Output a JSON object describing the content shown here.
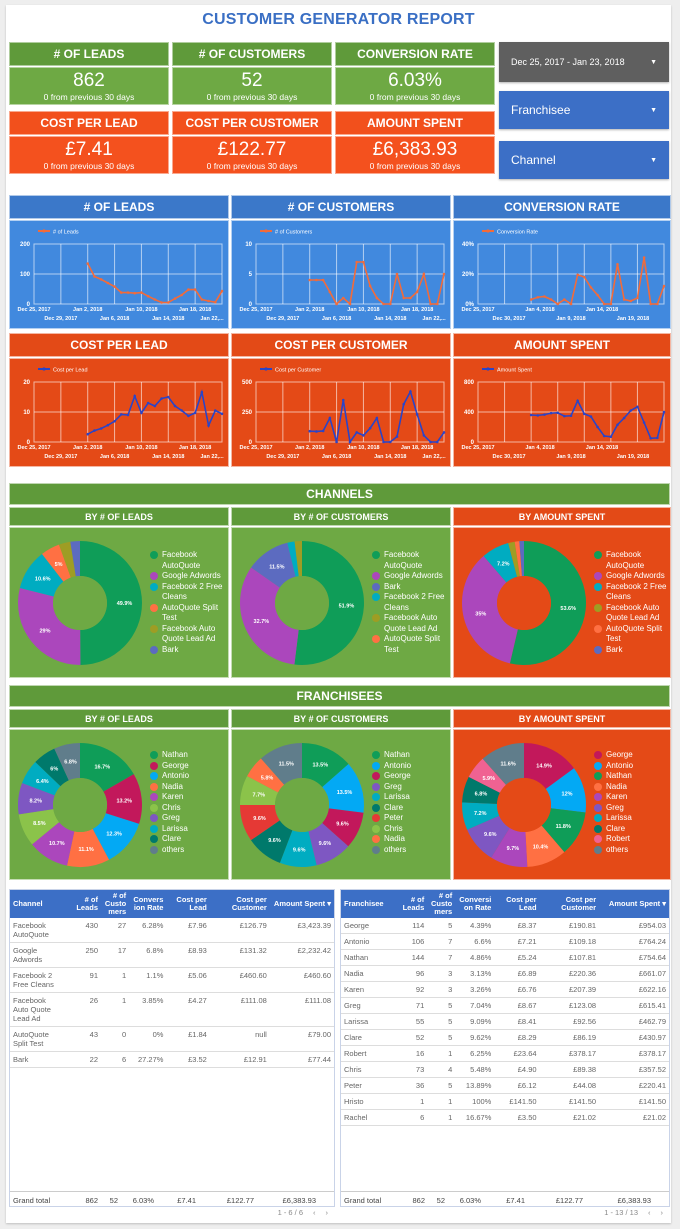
{
  "title": "CUSTOMER GENERATOR REPORT",
  "kpis": [
    {
      "label": "# OF LEADS",
      "value": "862",
      "sub": "0 from previous 30 days"
    },
    {
      "label": "# OF CUSTOMERS",
      "value": "52",
      "sub": "0 from previous 30 days"
    },
    {
      "label": "CONVERSION RATE",
      "value": "6.03%",
      "sub": "0 from previous 30 days"
    },
    {
      "label": "COST PER LEAD",
      "value": "£7.41",
      "sub": "0 from previous 30 days"
    },
    {
      "label": "COST PER CUSTOMER",
      "value": "£122.77",
      "sub": "0 from previous 30 days"
    },
    {
      "label": "AMOUNT SPENT",
      "value": "£6,383.93",
      "sub": "0 from previous 30 days"
    }
  ],
  "controls": {
    "date_range": "Dec 25, 2017 - Jan 23, 2018",
    "franchisee": "Franchisee",
    "channel": "Channel"
  },
  "colors": {
    "green": "#6ea944",
    "orange": "#f4511e",
    "blue": "#4189de",
    "table_header": "#3c6fc6"
  },
  "chart_data": [
    {
      "type": "line",
      "title": "# OF LEADS",
      "legend": "# of Leads",
      "ylim": [
        0,
        200
      ],
      "yticks": [
        "0",
        "100",
        "200"
      ],
      "xticks_top": [
        "Dec 25, 2017",
        "Jan 2, 2018",
        "Jan 10, 2018",
        "Jan 18, 2018"
      ],
      "xticks_bottom": [
        "Dec 29, 2017",
        "Jan 6, 2018",
        "Jan 14, 2018",
        "Jan 22,..."
      ],
      "x_days": 29,
      "x_start": 8,
      "values": [
        135,
        92,
        82,
        70,
        58,
        38,
        38,
        36,
        38,
        26,
        15,
        5,
        5,
        18,
        30,
        48,
        48,
        15,
        10,
        6,
        43
      ],
      "line_color": "#f26b3a",
      "grid": true
    },
    {
      "type": "line",
      "title": "# OF CUSTOMERS",
      "legend": "# of Customers",
      "ylim": [
        0,
        10
      ],
      "yticks": [
        "0",
        "5",
        "10"
      ],
      "xticks_top": [
        "Dec 25, 2017",
        "Jan 2, 2018",
        "Jan 10, 2018",
        "Jan 18, 2018"
      ],
      "xticks_bottom": [
        "Dec 29, 2017",
        "Jan 6, 2018",
        "Jan 14, 2018",
        "Jan 22,..."
      ],
      "x_days": 29,
      "x_start": 8,
      "values": [
        4,
        4,
        4,
        2,
        0,
        1,
        0,
        7,
        7,
        3,
        1,
        0,
        0,
        5,
        1,
        1,
        2,
        5,
        0,
        0,
        5
      ],
      "line_color": "#f26b3a",
      "grid": true
    },
    {
      "type": "line",
      "title": "CONVERSION RATE",
      "legend": "Conversion Rate",
      "ylim": [
        0,
        40
      ],
      "yticks": [
        "0%",
        "20%",
        "40%"
      ],
      "xticks_top": [
        "Dec 25, 2017",
        "Jan 4, 2018",
        "Jan 14, 2018"
      ],
      "xticks_bottom": [
        "Dec 30, 2017",
        "Jan 9, 2018",
        "Jan 19, 2018"
      ],
      "x_days": 29,
      "x_start": 8,
      "values": [
        3,
        4.5,
        5,
        3,
        0,
        3,
        0,
        19.5,
        18,
        11,
        6,
        0,
        0,
        26.5,
        3,
        2,
        4,
        31,
        0,
        0,
        12
      ],
      "line_color": "#f26b3a",
      "grid": true
    },
    {
      "type": "line",
      "title": "COST PER LEAD",
      "legend": "Cost per Lead",
      "ylim": [
        0,
        20
      ],
      "yticks": [
        "0",
        "10",
        "20"
      ],
      "xticks_top": [
        "Dec 25, 2017",
        "Jan 2, 2018",
        "Jan 10, 2018",
        "Jan 18, 2018"
      ],
      "xticks_bottom": [
        "Dec 29, 2017",
        "Jan 6, 2018",
        "Jan 14, 2018",
        "Jan 22,..."
      ],
      "x_days": 29,
      "x_start": 8,
      "values": [
        2.6,
        3.8,
        4.5,
        5.6,
        6.9,
        9.2,
        9.0,
        15.3,
        9.7,
        13.0,
        12.0,
        14.5,
        15.0,
        12.0,
        10.5,
        8.7,
        9.7,
        16.6,
        5.5,
        10.5,
        9.4
      ],
      "line_color": "#2a44c8",
      "grid": true
    },
    {
      "type": "line",
      "title": "COST PER CUSTOMER",
      "legend": "Cost per Customer",
      "ylim": [
        0,
        500
      ],
      "yticks": [
        "0",
        "250",
        "500"
      ],
      "xticks_top": [
        "Dec 25, 2017",
        "Jan 2, 2018",
        "Jan 10, 2018",
        "Jan 18, 2018"
      ],
      "xticks_bottom": [
        "Dec 29, 2017",
        "Jan 6, 2018",
        "Jan 14, 2018",
        "Jan 22,..."
      ],
      "x_days": 29,
      "x_start": 8,
      "values": [
        90,
        88,
        92,
        200,
        0,
        350,
        0,
        80,
        55,
        115,
        200,
        0,
        0,
        45,
        315,
        420,
        230,
        55,
        0,
        0,
        80
      ],
      "line_color": "#2a44c8",
      "grid": true
    },
    {
      "type": "line",
      "title": "AMOUNT SPENT",
      "legend": "Amount Spent",
      "ylim": [
        0,
        800
      ],
      "yticks": [
        "0",
        "400",
        "800"
      ],
      "xticks_top": [
        "Dec 25, 2017",
        "Jan 4, 2018",
        "Jan 14, 2018"
      ],
      "xticks_bottom": [
        "Dec 30, 2017",
        "Jan 9, 2018",
        "Jan 19, 2018"
      ],
      "x_days": 29,
      "x_start": 8,
      "values": [
        360,
        355,
        365,
        385,
        390,
        345,
        350,
        550,
        375,
        340,
        200,
        80,
        70,
        230,
        320,
        420,
        470,
        260,
        50,
        55,
        400
      ],
      "line_color": "#2a44c8",
      "grid": true
    }
  ],
  "channels": {
    "title": "CHANNELS",
    "pies": [
      {
        "title": "BY # OF LEADS",
        "type": "pie",
        "slices": [
          {
            "label": "Facebook AutoQuote",
            "value": 49.9,
            "color": "#0f9d58",
            "show": "49.9%"
          },
          {
            "label": "Google Adwords",
            "value": 29,
            "color": "#ab47bc",
            "show": "29%"
          },
          {
            "label": "Facebook 2 Free Cleans",
            "value": 10.6,
            "color": "#00acc1",
            "show": "10.6%"
          },
          {
            "label": "AutoQuote Split Test",
            "value": 5,
            "color": "#ff7043",
            "show": "5%"
          },
          {
            "label": "Facebook Auto Quote Lead Ad",
            "value": 3,
            "color": "#9e9d24",
            "show": ""
          },
          {
            "label": "Bark",
            "value": 2.5,
            "color": "#5c6bc0",
            "show": ""
          }
        ]
      },
      {
        "title": "BY # OF CUSTOMERS",
        "type": "pie",
        "slices": [
          {
            "label": "Facebook AutoQuote",
            "value": 51.9,
            "color": "#0f9d58",
            "show": "51.9%"
          },
          {
            "label": "Google Adwords",
            "value": 32.7,
            "color": "#ab47bc",
            "show": "32.7%"
          },
          {
            "label": "Bark",
            "value": 11.5,
            "color": "#5c6bc0",
            "show": "11.5%"
          },
          {
            "label": "Facebook 2 Free Cleans",
            "value": 1.9,
            "color": "#00acc1",
            "show": ""
          },
          {
            "label": "Facebook Auto Quote Lead Ad",
            "value": 1.9,
            "color": "#9e9d24",
            "show": ""
          },
          {
            "label": "AutoQuote Split Test",
            "value": 0,
            "color": "#ff7043",
            "show": ""
          }
        ]
      },
      {
        "title": "BY AMOUNT SPENT",
        "type": "pie",
        "slices": [
          {
            "label": "Facebook AutoQuote",
            "value": 53.6,
            "color": "#0f9d58",
            "show": "53.6%"
          },
          {
            "label": "Google Adwords",
            "value": 35,
            "color": "#ab47bc",
            "show": "35%"
          },
          {
            "label": "Facebook 2 Free Cleans",
            "value": 7.2,
            "color": "#00acc1",
            "show": "7.2%"
          },
          {
            "label": "Facebook Auto Quote Lead Ad",
            "value": 1.7,
            "color": "#9e9d24",
            "show": ""
          },
          {
            "label": "AutoQuote Split Test",
            "value": 1.2,
            "color": "#ff7043",
            "show": ""
          },
          {
            "label": "Bark",
            "value": 1.2,
            "color": "#5c6bc0",
            "show": ""
          }
        ]
      }
    ]
  },
  "franchisees": {
    "title": "FRANCHISEES",
    "pies": [
      {
        "title": "BY # OF LEADS",
        "type": "pie",
        "slices": [
          {
            "label": "Nathan",
            "value": 16.7,
            "color": "#0f9d58",
            "show": "16.7%"
          },
          {
            "label": "George",
            "value": 13.2,
            "color": "#c2185b",
            "show": "13.2%"
          },
          {
            "label": "Antonio",
            "value": 12.3,
            "color": "#03a9f4",
            "show": "12.3%"
          },
          {
            "label": "Nadia",
            "value": 11.1,
            "color": "#ff7043",
            "show": "11.1%"
          },
          {
            "label": "Karen",
            "value": 10.7,
            "color": "#ab47bc",
            "show": "10.7%"
          },
          {
            "label": "Chris",
            "value": 8.5,
            "color": "#8bc34a",
            "show": "8.5%"
          },
          {
            "label": "Greg",
            "value": 8.2,
            "color": "#7e57c2",
            "show": "8.2%"
          },
          {
            "label": "Larissa",
            "value": 6.4,
            "color": "#00acc1",
            "show": "6.4%"
          },
          {
            "label": "Clare",
            "value": 6,
            "color": "#00796b",
            "show": "6%"
          },
          {
            "label": "others",
            "value": 6.8,
            "color": "#607d8b",
            "show": "6.8%"
          }
        ]
      },
      {
        "title": "BY # OF CUSTOMERS",
        "type": "pie",
        "slices": [
          {
            "label": "Nathan",
            "value": 13.5,
            "color": "#0f9d58",
            "show": "13.5%"
          },
          {
            "label": "Antonio",
            "value": 13.5,
            "color": "#03a9f4",
            "show": "13.5%"
          },
          {
            "label": "George",
            "value": 9.6,
            "color": "#c2185b",
            "show": "9.6%"
          },
          {
            "label": "Greg",
            "value": 9.6,
            "color": "#7e57c2",
            "show": "9.6%"
          },
          {
            "label": "Larissa",
            "value": 9.6,
            "color": "#00acc1",
            "show": "9.6%"
          },
          {
            "label": "Clare",
            "value": 9.6,
            "color": "#00796b",
            "show": "9.6%"
          },
          {
            "label": "Peter",
            "value": 9.6,
            "color": "#e53935",
            "show": "9.6%"
          },
          {
            "label": "Chris",
            "value": 7.7,
            "color": "#8bc34a",
            "show": "7.7%"
          },
          {
            "label": "Nadia",
            "value": 5.8,
            "color": "#ff7043",
            "show": "5.8%"
          },
          {
            "label": "others",
            "value": 11.5,
            "color": "#607d8b",
            "show": "11.5%"
          }
        ]
      },
      {
        "title": "BY AMOUNT SPENT",
        "type": "pie",
        "slices": [
          {
            "label": "George",
            "value": 14.9,
            "color": "#c2185b",
            "show": "14.9%"
          },
          {
            "label": "Antonio",
            "value": 12,
            "color": "#03a9f4",
            "show": "12%"
          },
          {
            "label": "Nathan",
            "value": 11.8,
            "color": "#0f9d58",
            "show": "11.8%"
          },
          {
            "label": "Nadia",
            "value": 10.4,
            "color": "#ff7043",
            "show": "10.4%"
          },
          {
            "label": "Karen",
            "value": 9.7,
            "color": "#ab47bc",
            "show": "9.7%"
          },
          {
            "label": "Greg",
            "value": 9.6,
            "color": "#7e57c2",
            "show": "9.6%"
          },
          {
            "label": "Larissa",
            "value": 7.2,
            "color": "#00acc1",
            "show": "7.2%"
          },
          {
            "label": "Clare",
            "value": 6.8,
            "color": "#00796b",
            "show": "6.8%"
          },
          {
            "label": "Robert",
            "value": 5.9,
            "color": "#f06292",
            "show": "5.9%"
          },
          {
            "label": "others",
            "value": 11.6,
            "color": "#607d8b",
            "show": "11.6%"
          }
        ]
      }
    ]
  },
  "channel_table": {
    "headers": [
      "Channel",
      "# of Leads",
      "# of Custo mers",
      "Convers ion Rate",
      "Cost per Lead",
      "Cost per Customer",
      "Amount Spent ▾"
    ],
    "rows": [
      [
        "Facebook AutoQuote",
        "430",
        "27",
        "6.28%",
        "£7.96",
        "£126.79",
        "£3,423.39"
      ],
      [
        "Google Adwords",
        "250",
        "17",
        "6.8%",
        "£8.93",
        "£131.32",
        "£2,232.42"
      ],
      [
        "Facebook 2 Free Cleans",
        "91",
        "1",
        "1.1%",
        "£5.06",
        "£460.60",
        "£460.60"
      ],
      [
        "Facebook Auto Quote Lead Ad",
        "26",
        "1",
        "3.85%",
        "£4.27",
        "£111.08",
        "£111.08"
      ],
      [
        "AutoQuote Split Test",
        "43",
        "0",
        "0%",
        "£1.84",
        "null",
        "£79.00"
      ],
      [
        "Bark",
        "22",
        "6",
        "27.27%",
        "£3.52",
        "£12.91",
        "£77.44"
      ]
    ],
    "total": [
      "Grand total",
      "862",
      "52",
      "6.03%",
      "£7.41",
      "£122.77",
      "£6,383.93"
    ],
    "pager": "1 - 6 / 6"
  },
  "franchisee_table": {
    "headers": [
      "Franchisee",
      "# of Leads",
      "# of Custo mers",
      "Conversi on Rate",
      "Cost per Lead",
      "Cost per Customer",
      "Amount Spent ▾"
    ],
    "rows": [
      [
        "George",
        "114",
        "5",
        "4.39%",
        "£8.37",
        "£190.81",
        "£954.03"
      ],
      [
        "Antonio",
        "106",
        "7",
        "6.6%",
        "£7.21",
        "£109.18",
        "£764.24"
      ],
      [
        "Nathan",
        "144",
        "7",
        "4.86%",
        "£5.24",
        "£107.81",
        "£754.64"
      ],
      [
        "Nadia",
        "96",
        "3",
        "3.13%",
        "£6.89",
        "£220.36",
        "£661.07"
      ],
      [
        "Karen",
        "92",
        "3",
        "3.26%",
        "£6.76",
        "£207.39",
        "£622.16"
      ],
      [
        "Greg",
        "71",
        "5",
        "7.04%",
        "£8.67",
        "£123.08",
        "£615.41"
      ],
      [
        "Larissa",
        "55",
        "5",
        "9.09%",
        "£8.41",
        "£92.56",
        "£462.79"
      ],
      [
        "Clare",
        "52",
        "5",
        "9.62%",
        "£8.29",
        "£86.19",
        "£430.97"
      ],
      [
        "Robert",
        "16",
        "1",
        "6.25%",
        "£23.64",
        "£378.17",
        "£378.17"
      ],
      [
        "Chris",
        "73",
        "4",
        "5.48%",
        "£4.90",
        "£89.38",
        "£357.52"
      ],
      [
        "Peter",
        "36",
        "5",
        "13.89%",
        "£6.12",
        "£44.08",
        "£220.41"
      ],
      [
        "Hristo",
        "1",
        "1",
        "100%",
        "£141.50",
        "£141.50",
        "£141.50"
      ],
      [
        "Rachel",
        "6",
        "1",
        "16.67%",
        "£3.50",
        "£21.02",
        "£21.02"
      ]
    ],
    "total": [
      "Grand total",
      "862",
      "52",
      "6.03%",
      "£7.41",
      "£122.77",
      "£6,383.93"
    ],
    "pager": "1 - 13 / 13"
  },
  "pager_icons": {
    "prev": "‹",
    "next": "›"
  }
}
